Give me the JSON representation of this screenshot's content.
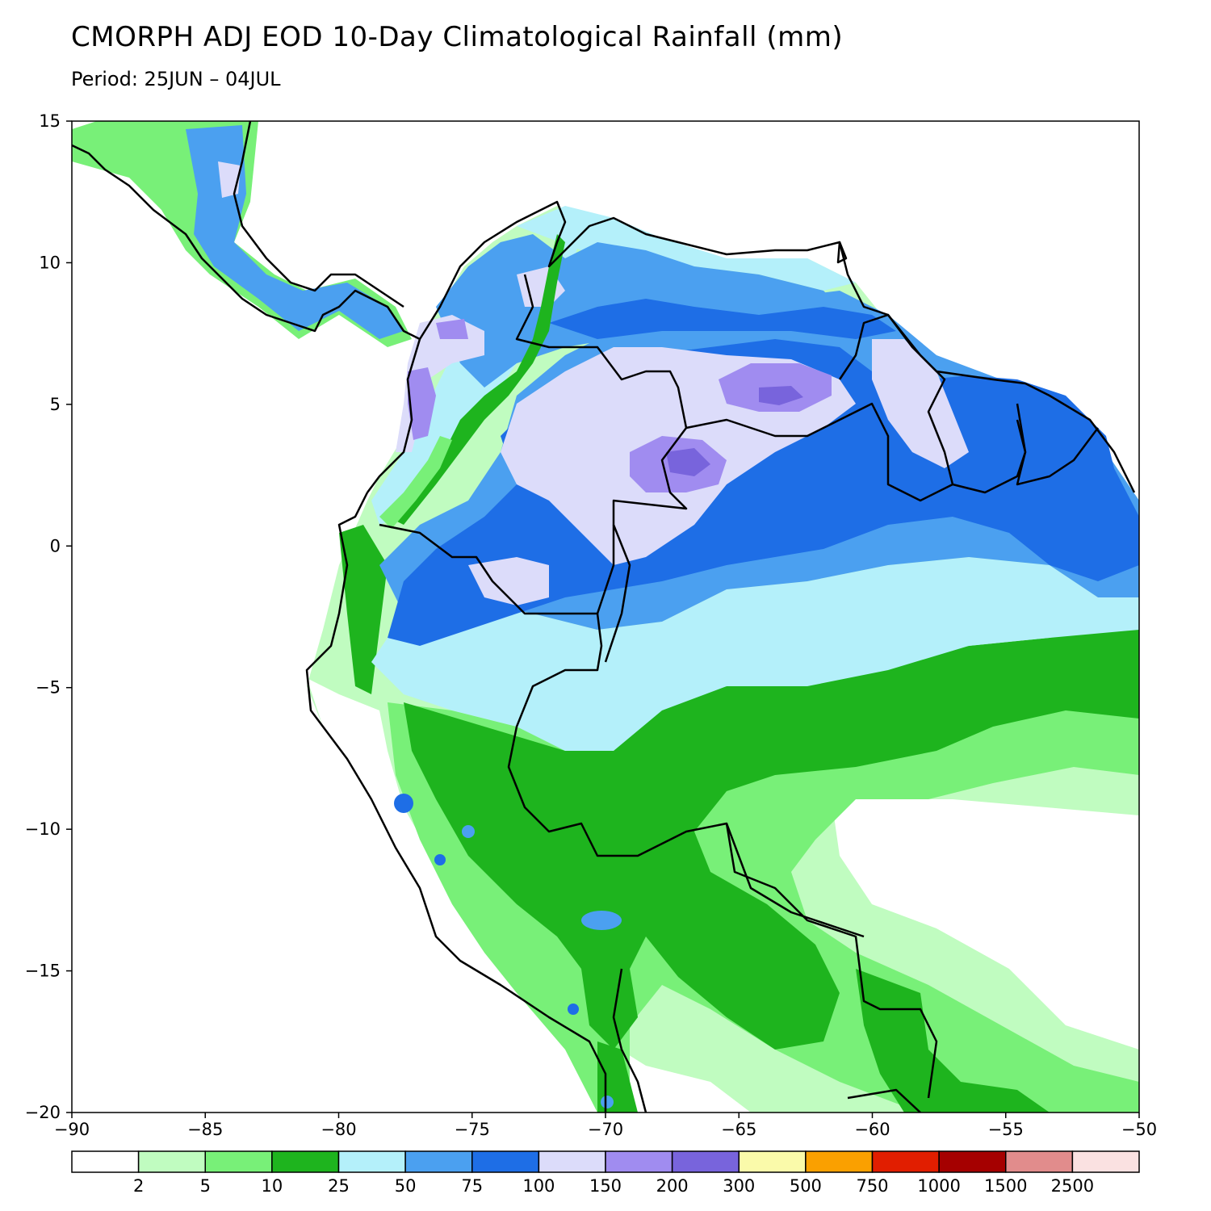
{
  "title": "CMORPH ADJ EOD 10-Day Climatological Rainfall (mm)",
  "subtitle": "Period: 25JUN – 04JUL",
  "map": {
    "lon_range": [
      -90,
      -50
    ],
    "lat_range": [
      -20,
      15
    ],
    "x_ticks": [
      {
        "value": -90,
        "label": "−90"
      },
      {
        "value": -85,
        "label": "−85"
      },
      {
        "value": -80,
        "label": "−80"
      },
      {
        "value": -75,
        "label": "−75"
      },
      {
        "value": -70,
        "label": "−70"
      },
      {
        "value": -65,
        "label": "−65"
      },
      {
        "value": -60,
        "label": "−60"
      },
      {
        "value": -55,
        "label": "−55"
      },
      {
        "value": -50,
        "label": "−50"
      }
    ],
    "y_ticks": [
      {
        "value": 15,
        "label": "15"
      },
      {
        "value": 10,
        "label": "10"
      },
      {
        "value": 5,
        "label": "5"
      },
      {
        "value": 0,
        "label": "0"
      },
      {
        "value": -5,
        "label": "−5"
      },
      {
        "value": -10,
        "label": "−10"
      },
      {
        "value": -15,
        "label": "−15"
      },
      {
        "value": -20,
        "label": "−20"
      }
    ],
    "ocean_color": "#ffffff"
  },
  "legend": {
    "colors": [
      "#ffffff",
      "#c0fcc0",
      "#78f078",
      "#1eb41e",
      "#b4f0fa",
      "#4ba0f0",
      "#1e6ee6",
      "#dcdcfa",
      "#a08cf0",
      "#7864dc",
      "#fafaaa",
      "#faa000",
      "#e11e00",
      "#a50000",
      "#e18c8c",
      "#fae1e1"
    ],
    "labels": [
      "2",
      "5",
      "10",
      "25",
      "50",
      "75",
      "100",
      "150",
      "200",
      "300",
      "500",
      "750",
      "1000",
      "1500",
      "2500"
    ]
  }
}
